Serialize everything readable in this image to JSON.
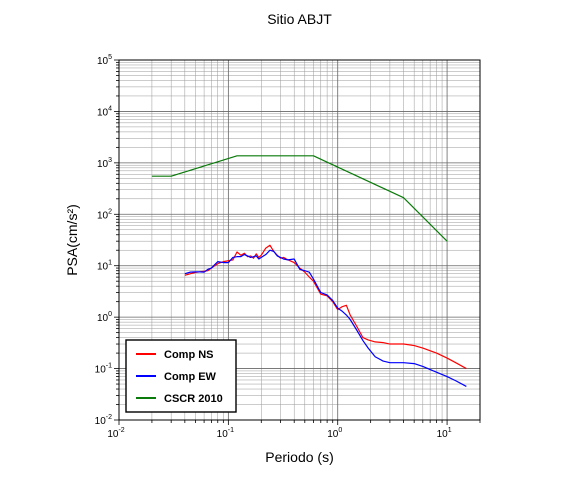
{
  "chart_data": {
    "type": "line",
    "title": "Sitio ABJT",
    "xlabel": "Periodo (s)",
    "ylabel": "PSA(cm/s²)",
    "xscale": "log",
    "yscale": "log",
    "xlim": [
      0.01,
      20
    ],
    "ylim": [
      0.01,
      100000
    ],
    "grid": true,
    "legend_position": "bottom-left",
    "x_ticks": [
      {
        "base": "10",
        "exp": "-2"
      },
      {
        "base": "10",
        "exp": "-1"
      },
      {
        "base": "10",
        "exp": "0"
      },
      {
        "base": "10",
        "exp": "1"
      }
    ],
    "y_ticks": [
      {
        "base": "10",
        "exp": "-2"
      },
      {
        "base": "10",
        "exp": "-1"
      },
      {
        "base": "10",
        "exp": "0"
      },
      {
        "base": "10",
        "exp": "1"
      },
      {
        "base": "10",
        "exp": "2"
      },
      {
        "base": "10",
        "exp": "3"
      },
      {
        "base": "10",
        "exp": "4"
      },
      {
        "base": "10",
        "exp": "5"
      }
    ],
    "series": [
      {
        "name": "Comp NS",
        "color": "#ff0000",
        "x": [
          0.04,
          0.045,
          0.05,
          0.055,
          0.06,
          0.065,
          0.07,
          0.075,
          0.08,
          0.09,
          0.1,
          0.11,
          0.12,
          0.13,
          0.14,
          0.15,
          0.16,
          0.17,
          0.18,
          0.19,
          0.2,
          0.22,
          0.24,
          0.26,
          0.28,
          0.3,
          0.32,
          0.35,
          0.4,
          0.45,
          0.5,
          0.55,
          0.6,
          0.7,
          0.8,
          0.9,
          1.0,
          1.1,
          1.2,
          1.3,
          1.5,
          1.7,
          1.9,
          2.2,
          2.6,
          3.0,
          3.5,
          4.0,
          5.0,
          6.0,
          8.0,
          10.0,
          12.0,
          15.0
        ],
        "y": [
          6.5,
          7.0,
          7.4,
          7.6,
          7.8,
          8.0,
          9.0,
          10.0,
          11.0,
          12.0,
          12.5,
          13.0,
          18.5,
          16.0,
          17.5,
          15.0,
          15.5,
          14.0,
          17.0,
          14.5,
          16.0,
          22.0,
          25.0,
          19.0,
          16.0,
          14.0,
          14.5,
          13.0,
          11.5,
          9.0,
          7.5,
          6.0,
          5.0,
          2.8,
          2.6,
          2.0,
          1.4,
          1.6,
          1.7,
          1.1,
          0.65,
          0.4,
          0.36,
          0.33,
          0.32,
          0.3,
          0.3,
          0.3,
          0.28,
          0.25,
          0.2,
          0.16,
          0.13,
          0.1
        ]
      },
      {
        "name": "Comp EW",
        "color": "#0000ff",
        "x": [
          0.04,
          0.045,
          0.05,
          0.055,
          0.06,
          0.065,
          0.07,
          0.075,
          0.08,
          0.09,
          0.1,
          0.11,
          0.12,
          0.13,
          0.14,
          0.15,
          0.16,
          0.17,
          0.18,
          0.19,
          0.2,
          0.22,
          0.24,
          0.26,
          0.28,
          0.3,
          0.32,
          0.35,
          0.4,
          0.45,
          0.5,
          0.55,
          0.6,
          0.7,
          0.8,
          0.9,
          1.0,
          1.1,
          1.2,
          1.3,
          1.5,
          1.7,
          1.9,
          2.2,
          2.6,
          3.0,
          3.5,
          4.0,
          5.0,
          6.0,
          8.0,
          10.0,
          12.0,
          15.0
        ],
        "y": [
          7.0,
          7.5,
          7.6,
          7.6,
          7.5,
          8.5,
          9.0,
          10.5,
          12.0,
          11.5,
          11.5,
          14.5,
          15.0,
          15.0,
          16.5,
          15.5,
          14.5,
          15.0,
          15.5,
          13.5,
          14.5,
          16.5,
          20.0,
          19.0,
          15.5,
          14.5,
          13.5,
          13.0,
          13.5,
          8.5,
          8.0,
          7.5,
          5.5,
          3.0,
          2.7,
          2.1,
          1.5,
          1.3,
          1.1,
          0.9,
          0.55,
          0.35,
          0.25,
          0.17,
          0.14,
          0.13,
          0.13,
          0.13,
          0.125,
          0.11,
          0.085,
          0.07,
          0.058,
          0.045
        ]
      },
      {
        "name": "CSCR 2010",
        "color": "#0a7a0a",
        "x": [
          0.02,
          0.03,
          0.12,
          0.6,
          4.0,
          10.0
        ],
        "y": [
          550,
          550,
          1370,
          1370,
          210,
          30
        ]
      }
    ]
  }
}
